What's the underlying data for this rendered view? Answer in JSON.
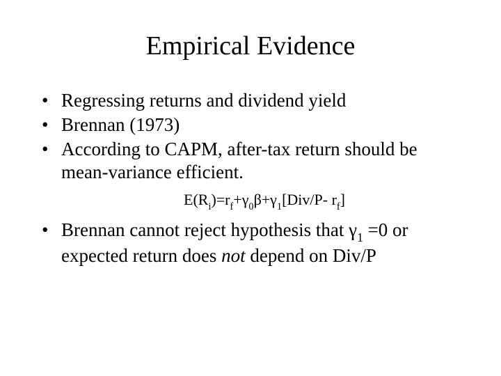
{
  "title": "Empirical Evidence",
  "bullets": {
    "b1": "Regressing returns and dividend yield",
    "b2": "Brennan (1973)",
    "b3": "According to CAPM, after-tax return should be mean-variance efficient."
  },
  "equation": {
    "part1": "E(R",
    "sub_i": "i",
    "part2": ")=r",
    "sub_f1": "f",
    "part3": "+γ",
    "sub_0": "0",
    "part4": "β+γ",
    "sub_1a": "1",
    "part5": "[Div/P- r",
    "sub_f2": "f",
    "part6": "]"
  },
  "bullet4": {
    "p1": "Brennan cannot reject hypothesis that γ",
    "sub1": "1",
    "p2": " =0 or expected return does ",
    "not": "not",
    "p3": " depend on Div/P"
  },
  "colors": {
    "background": "#ffffff",
    "text": "#000000"
  },
  "typography": {
    "title_fontsize": 38,
    "body_fontsize": 27,
    "equation_fontsize": 22,
    "font_family": "Times New Roman"
  }
}
